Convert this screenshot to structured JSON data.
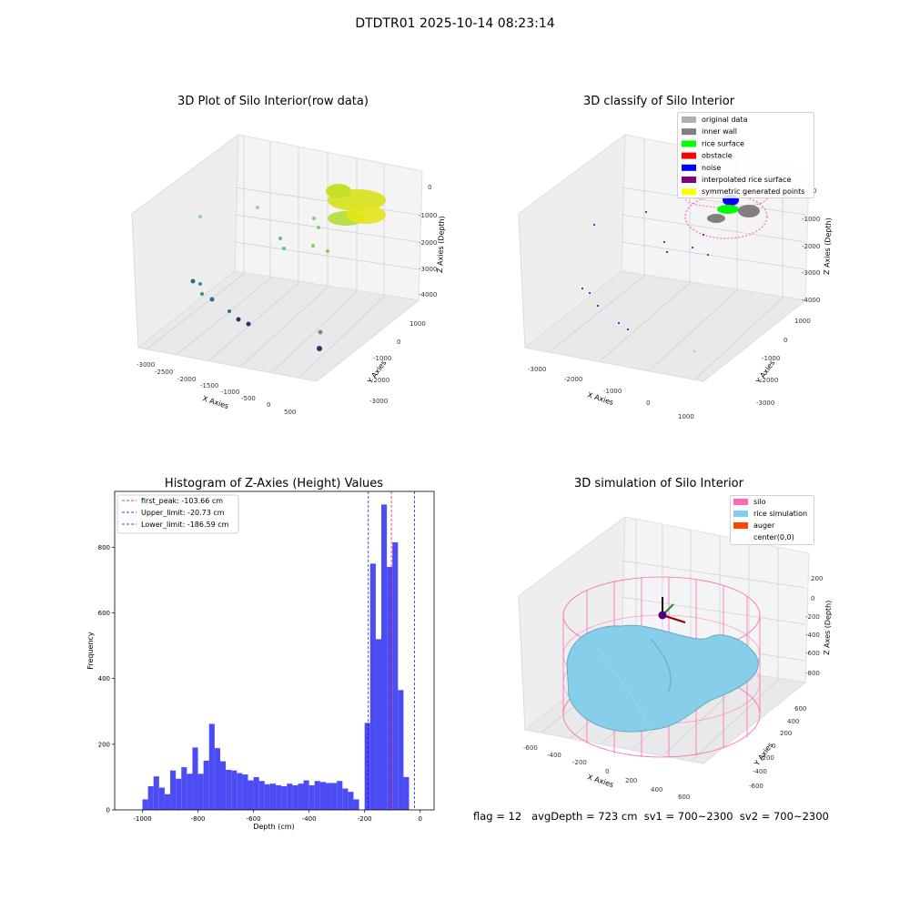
{
  "figure_title": "DTDTR01 2025-10-14 08:23:14",
  "footer": "flag = 12   avgDepth = 723 cm  sv1 = 700~2300  sv2 = 700~2300",
  "chart_data": [
    {
      "type": "scatter3d",
      "title": "3D Plot of Silo Interior(row data)",
      "xlabel": "X Axies",
      "ylabel": "Y Axies",
      "zlabel": "Z Axies (Depth)",
      "x_ticks": [
        "-3000",
        "-2500",
        "-2000",
        "-1500",
        "-1000",
        "-500",
        "0",
        "500"
      ],
      "y_ticks": [
        "-3000",
        "-2000",
        "-1000",
        "0",
        "1000"
      ],
      "z_ticks": [
        "0",
        "-1000",
        "-2000",
        "-3000",
        "-4000"
      ],
      "colormap": [
        "#1f3a6e",
        "#2f6b8e",
        "#3d9a8b",
        "#64c27a",
        "#a6d84d",
        "#e6e419"
      ]
    },
    {
      "type": "scatter3d",
      "title": "3D classify of Silo Interior",
      "xlabel": "X Axies",
      "ylabel": "Y Axies",
      "zlabel": "Z Axies (Depth)",
      "x_ticks": [
        "-3000",
        "-2000",
        "-1000",
        "0",
        "1000"
      ],
      "y_ticks": [
        "-3000",
        "-2000",
        "-1000",
        "0",
        "1000"
      ],
      "z_ticks": [
        "0",
        "-1000",
        "-2000",
        "-3000",
        "-4000"
      ],
      "legend_position": "top-right",
      "legend": [
        {
          "label": "original data",
          "color": "#b0b0b0"
        },
        {
          "label": "inner wall",
          "color": "#808080"
        },
        {
          "label": "rice surface",
          "color": "#00ff00"
        },
        {
          "label": "obstacle",
          "color": "#ff0000"
        },
        {
          "label": "noise",
          "color": "#0000ff"
        },
        {
          "label": "interpolated rice surface",
          "color": "#800080"
        },
        {
          "label": "symmetric generated points",
          "color": "#ffff00"
        }
      ]
    },
    {
      "type": "bar",
      "title": "Histogram of Z-Axies (Height) Values",
      "xlabel": "Depth (cm)",
      "ylabel": "Frequency",
      "xlim": [
        -1100,
        50
      ],
      "ylim": [
        0,
        970
      ],
      "x_ticks": [
        "-1000",
        "-800",
        "-600",
        "-400",
        "-200",
        "0"
      ],
      "y_ticks": [
        "0",
        "200",
        "400",
        "600",
        "800"
      ],
      "bar_color": "#4c4cf5",
      "bin_width": 20,
      "bin_starts": [
        -1000,
        -980,
        -960,
        -940,
        -920,
        -900,
        -880,
        -860,
        -840,
        -820,
        -800,
        -780,
        -760,
        -740,
        -720,
        -700,
        -680,
        -660,
        -640,
        -620,
        -600,
        -580,
        -560,
        -540,
        -520,
        -500,
        -480,
        -460,
        -440,
        -420,
        -400,
        -380,
        -360,
        -340,
        -320,
        -300,
        -280,
        -260,
        -240,
        -220,
        -200,
        -180,
        -160,
        -140,
        -120,
        -100,
        -80,
        -60,
        -40,
        -20,
        0
      ],
      "values": [
        32,
        72,
        102,
        68,
        48,
        120,
        95,
        130,
        110,
        190,
        110,
        150,
        262,
        188,
        148,
        122,
        120,
        112,
        108,
        90,
        100,
        88,
        78,
        80,
        75,
        72,
        80,
        75,
        80,
        90,
        75,
        88,
        85,
        82,
        82,
        88,
        65,
        55,
        32,
        0,
        265,
        750,
        520,
        930,
        740,
        815,
        365,
        100,
        0,
        0,
        0
      ],
      "vlines": [
        {
          "label": "first_peak: -103.66 cm",
          "value": -103.66,
          "color": "#ff0000"
        },
        {
          "label": "Upper_limit: -20.73 cm",
          "value": -20.73,
          "color": "#0000ff"
        },
        {
          "label": "Lower_limit: -186.59 cm",
          "value": -186.59,
          "color": "#0000ff"
        }
      ],
      "legend_position": "top-left"
    },
    {
      "type": "surface3d",
      "title": "3D simulation of Silo Interior",
      "xlabel": "X Axies",
      "ylabel": "Y Axies",
      "zlabel": "Z Axes (Depth)",
      "x_ticks": [
        "-600",
        "-400",
        "-200",
        "0",
        "200",
        "400",
        "600"
      ],
      "y_ticks": [
        "-600",
        "-400",
        "-200",
        "0",
        "200",
        "400",
        "600"
      ],
      "z_ticks": [
        "200",
        "0",
        "-200",
        "-400",
        "-600",
        "-800"
      ],
      "legend_position": "top-right",
      "legend": [
        {
          "label": "silo",
          "color": "#ff69b4"
        },
        {
          "label": "rice simulation",
          "color": "#87ceeb"
        },
        {
          "label": "auger",
          "color": "#ff4500"
        },
        {
          "label": "center(0,0)",
          "color": "#ffffff"
        }
      ]
    }
  ]
}
